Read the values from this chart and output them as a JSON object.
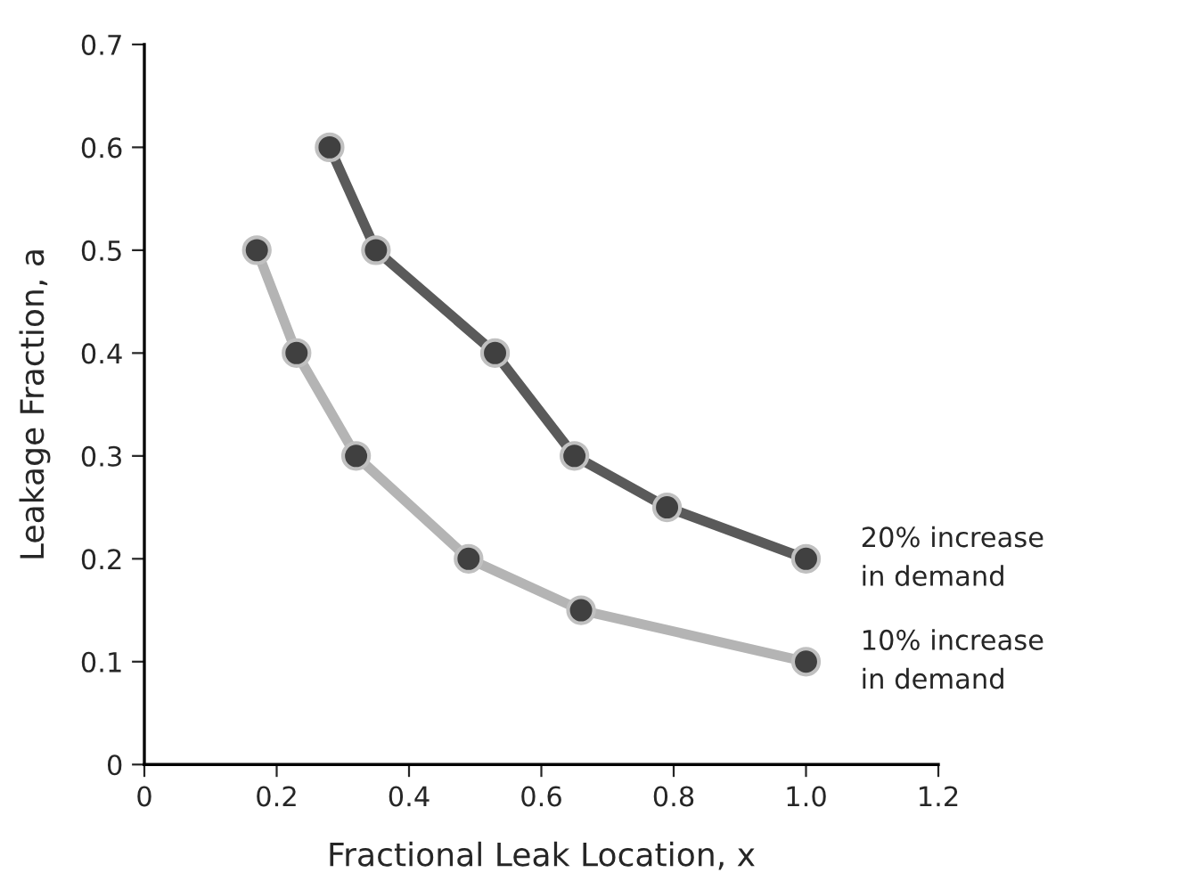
{
  "chart_data": {
    "type": "line",
    "xlabel": "Fractional Leak Location, x",
    "ylabel": "Leakage Fraction, a",
    "xlim": [
      0,
      1.2
    ],
    "xticks": [
      0,
      0.2,
      0.4,
      0.6,
      0.8,
      {
        "value": 1.0,
        "label": "1.0"
      },
      1.2
    ],
    "ylim": [
      0,
      0.7
    ],
    "yticks": [
      0,
      0.1,
      0.2,
      0.3,
      0.4,
      0.5,
      0.6,
      0.7
    ],
    "grid": false,
    "legend": false,
    "marker": "circle",
    "line_style": "solid",
    "series": [
      {
        "name": "20% increase\nin demand",
        "color": "#5a5a5a",
        "x": [
          0.28,
          0.35,
          0.53,
          0.65,
          0.79,
          1.0
        ],
        "values": [
          0.6,
          0.5,
          0.4,
          0.3,
          0.25,
          0.2
        ]
      },
      {
        "name": "10% increase\nin demand",
        "color": "#b4b4b4",
        "x": [
          0.17,
          0.23,
          0.32,
          0.49,
          0.66,
          1.0
        ],
        "values": [
          0.5,
          0.4,
          0.3,
          0.2,
          0.15,
          0.1
        ]
      }
    ]
  }
}
